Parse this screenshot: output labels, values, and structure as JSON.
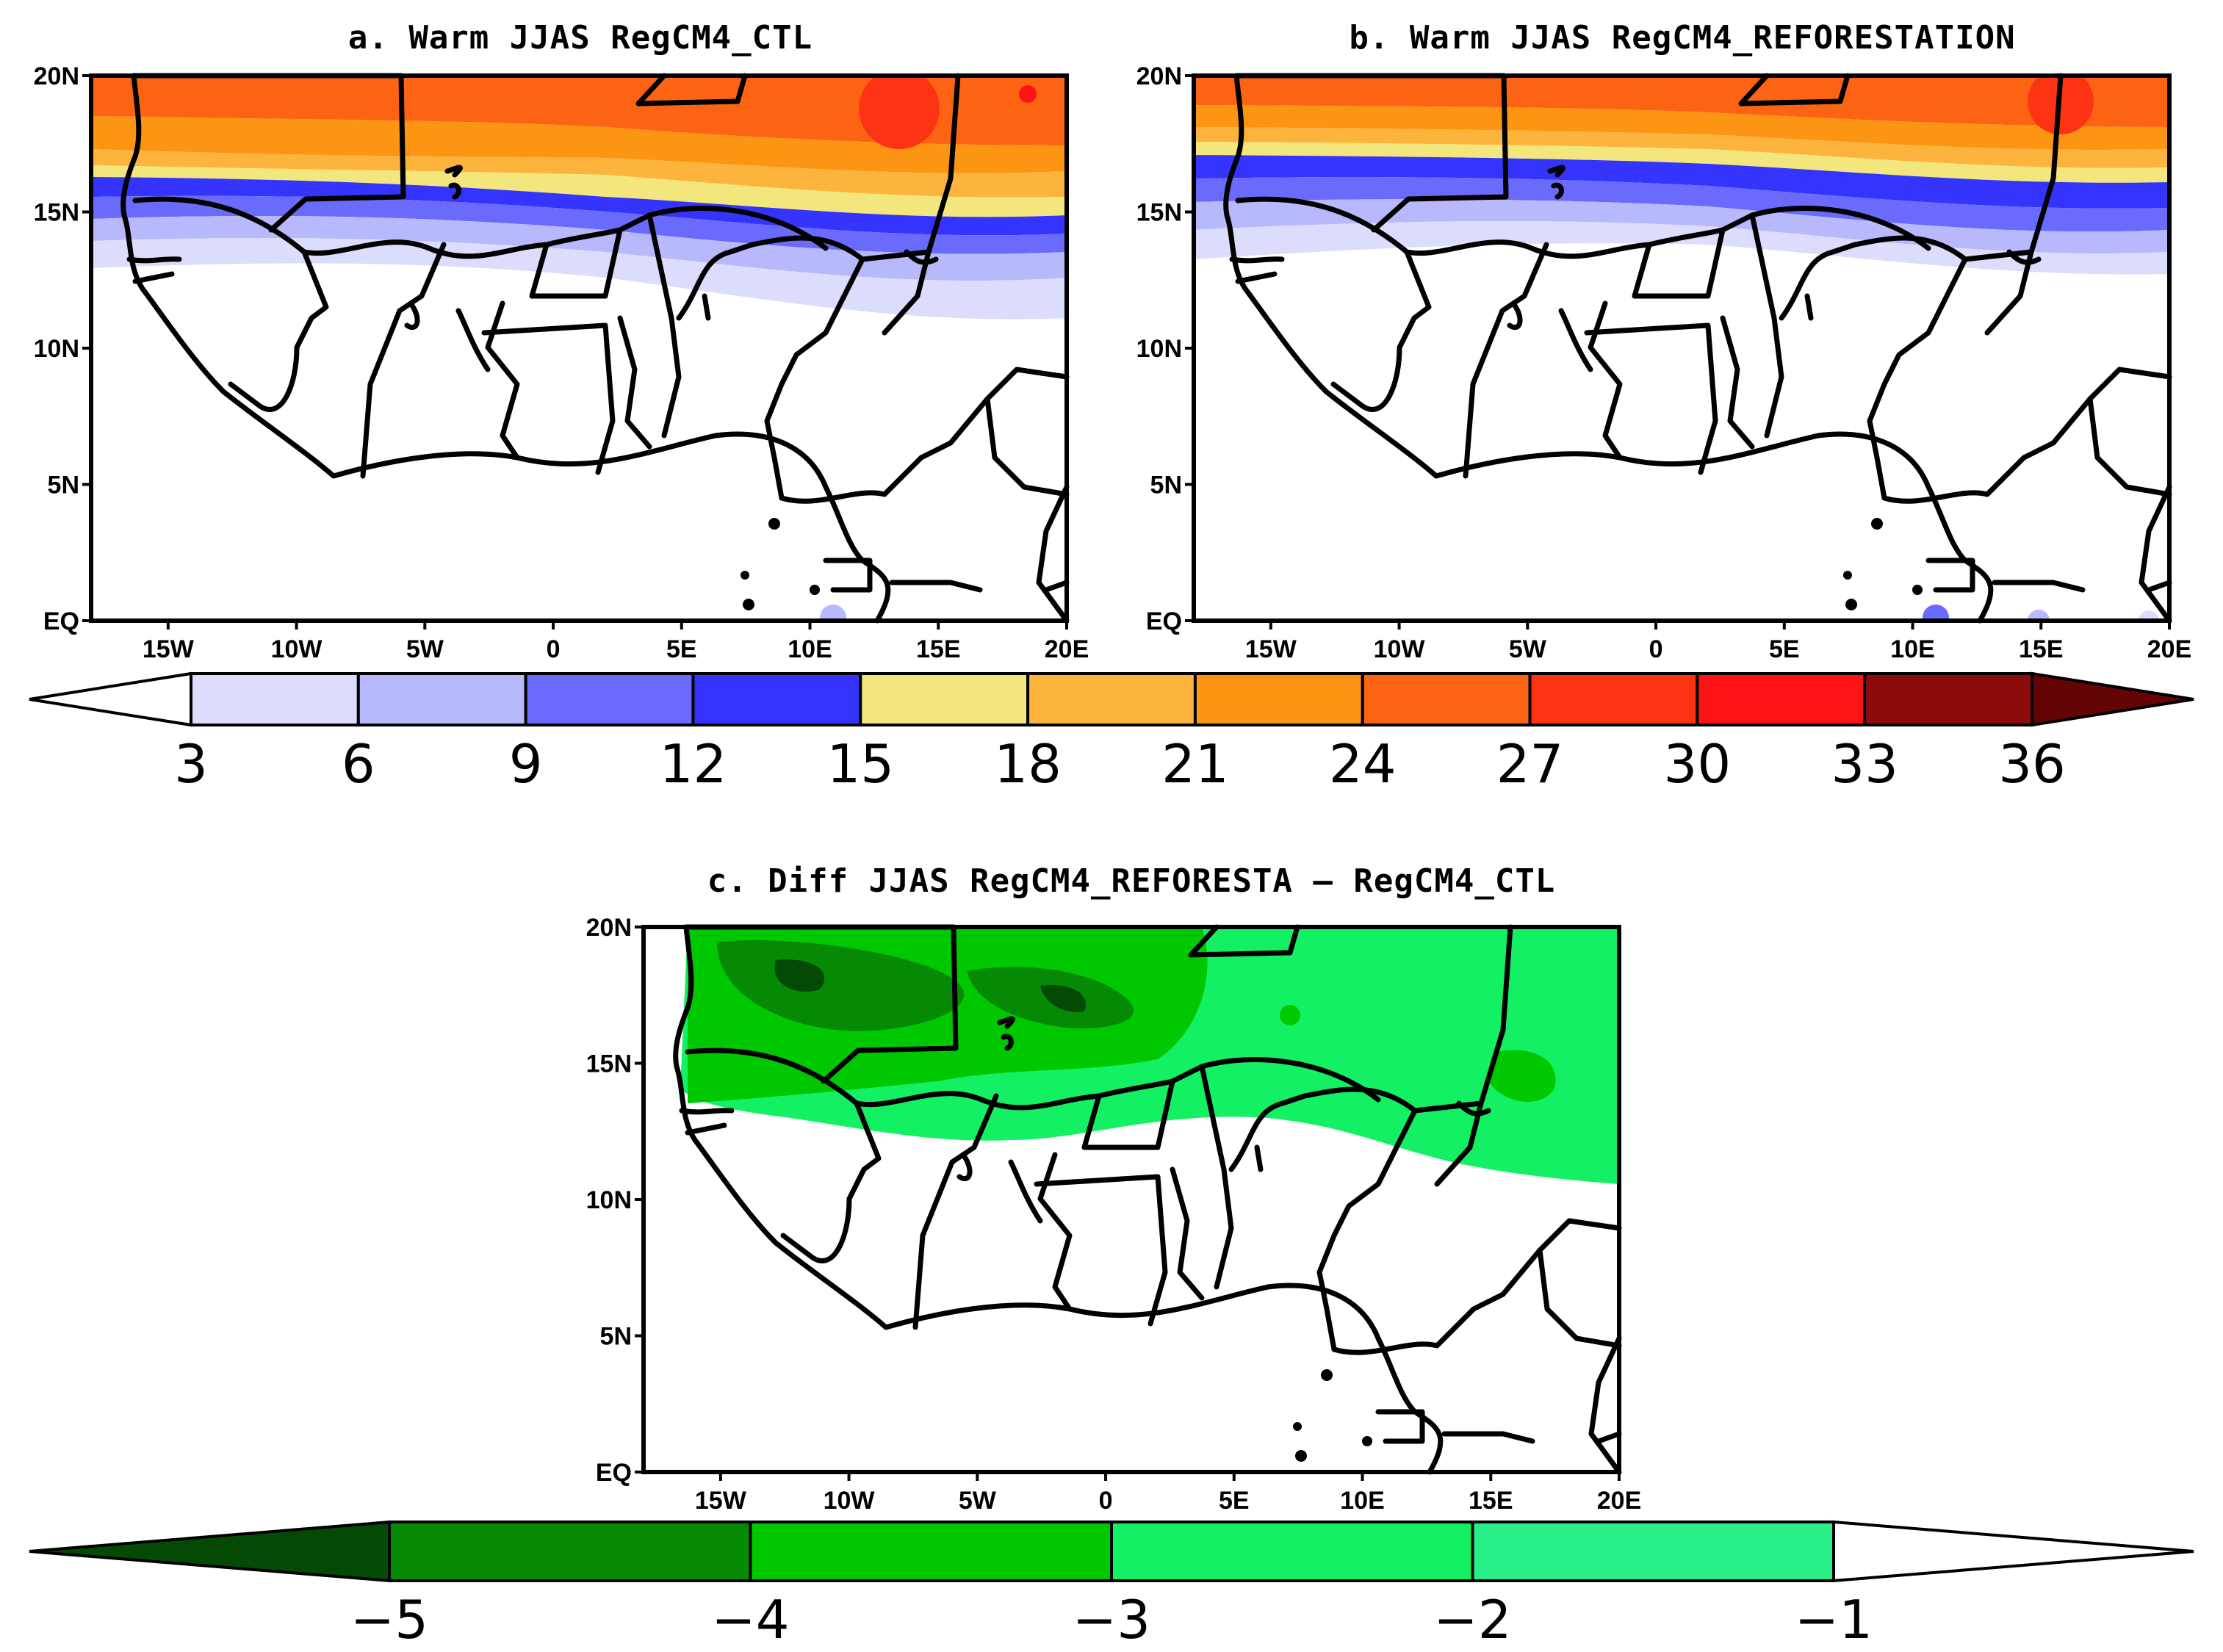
{
  "panels": [
    {
      "id": "a",
      "title": "a. Warm JJAS RegCM4_CTL"
    },
    {
      "id": "b",
      "title": "b. Warm JJAS RegCM4_REFORESTATION"
    },
    {
      "id": "c",
      "title": "c. Diff JJAS RegCM4_REFORESTA — RegCM4_CTL"
    }
  ],
  "axes": {
    "lon_ticks": [
      "15W",
      "10W",
      "5W",
      "0",
      "5E",
      "10E",
      "15E",
      "20E"
    ],
    "lat_ticks": [
      "20N",
      "15N",
      "10N",
      "5N",
      "EQ"
    ]
  },
  "colorbar_top": {
    "labels": [
      "3",
      "6",
      "9",
      "12",
      "15",
      "18",
      "21",
      "24",
      "27",
      "30",
      "33",
      "36"
    ],
    "colors": [
      "#ffffff",
      "#dcdcfc",
      "#b8b8fc",
      "#6a6afc",
      "#3434fc",
      "#f2e67c",
      "#fcb43c",
      "#fc9414",
      "#fc6414",
      "#fc3414",
      "#fc1414",
      "#8c0c0c",
      "#640404"
    ]
  },
  "colorbar_bottom": {
    "labels": [
      "−5",
      "−4",
      "−3",
      "−2",
      "−1"
    ],
    "colors": [
      "#044a04",
      "#068a06",
      "#00c800",
      "#14f064",
      "#28f086",
      "#ffffff"
    ]
  }
}
